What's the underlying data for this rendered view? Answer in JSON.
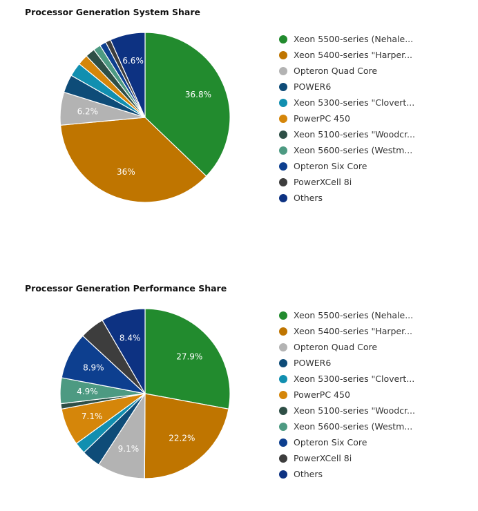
{
  "chart_data": [
    {
      "type": "pie",
      "title": "Processor Generation System Share",
      "legend_position": "right",
      "series": [
        {
          "name": "Xeon 5500-series (Nehale...",
          "value": 36.8,
          "label": "36.8%",
          "color": "#228b2e"
        },
        {
          "name": "Xeon 5400-series \"Harper...",
          "value": 36.0,
          "label": "36%",
          "color": "#bf7500"
        },
        {
          "name": "Opteron Quad Core",
          "value": 6.2,
          "label": "6.2%",
          "color": "#b3b3b3"
        },
        {
          "name": "POWER6",
          "value": 3.4,
          "label": "",
          "color": "#0e4c78"
        },
        {
          "name": "Xeon 5300-series \"Clovert...",
          "value": 2.6,
          "label": "",
          "color": "#118fb0"
        },
        {
          "name": "PowerPC 450",
          "value": 2.0,
          "label": "",
          "color": "#d5860a"
        },
        {
          "name": "Xeon 5100-series \"Woodcr...",
          "value": 1.8,
          "label": "",
          "color": "#2e4f46"
        },
        {
          "name": "Xeon 5600-series (Westm...",
          "value": 1.4,
          "label": "",
          "color": "#4d9a82"
        },
        {
          "name": "Opteron Six Core",
          "value": 1.2,
          "label": "",
          "color": "#0d3f8f"
        },
        {
          "name": "PowerXCell 8i",
          "value": 1.0,
          "label": "",
          "color": "#3d3d3d"
        },
        {
          "name": "Others",
          "value": 6.6,
          "label": "6.6%",
          "color": "#0d3282"
        }
      ]
    },
    {
      "type": "pie",
      "title": "Processor Generation Performance Share",
      "legend_position": "right",
      "series": [
        {
          "name": "Xeon 5500-series (Nehale...",
          "value": 27.9,
          "label": "27.9%",
          "color": "#228b2e"
        },
        {
          "name": "Xeon 5400-series \"Harper...",
          "value": 22.2,
          "label": "22.2%",
          "color": "#bf7500"
        },
        {
          "name": "Opteron Quad Core",
          "value": 9.1,
          "label": "9.1%",
          "color": "#b3b3b3"
        },
        {
          "name": "POWER6",
          "value": 3.6,
          "label": "",
          "color": "#0e4c78"
        },
        {
          "name": "Xeon 5300-series \"Clovert...",
          "value": 2.2,
          "label": "",
          "color": "#118fb0"
        },
        {
          "name": "PowerPC 450",
          "value": 7.1,
          "label": "7.1%",
          "color": "#d5860a"
        },
        {
          "name": "Xeon 5100-series \"Woodcr...",
          "value": 1.0,
          "label": "",
          "color": "#2e4f46"
        },
        {
          "name": "Xeon 5600-series (Westm...",
          "value": 4.9,
          "label": "4.9%",
          "color": "#4d9a82"
        },
        {
          "name": "Opteron Six Core",
          "value": 8.9,
          "label": "8.9%",
          "color": "#0d3f8f"
        },
        {
          "name": "PowerXCell 8i",
          "value": 4.7,
          "label": "",
          "color": "#3d3d3d"
        },
        {
          "name": "Others",
          "value": 8.4,
          "label": "8.4%",
          "color": "#0d3282"
        }
      ]
    }
  ]
}
